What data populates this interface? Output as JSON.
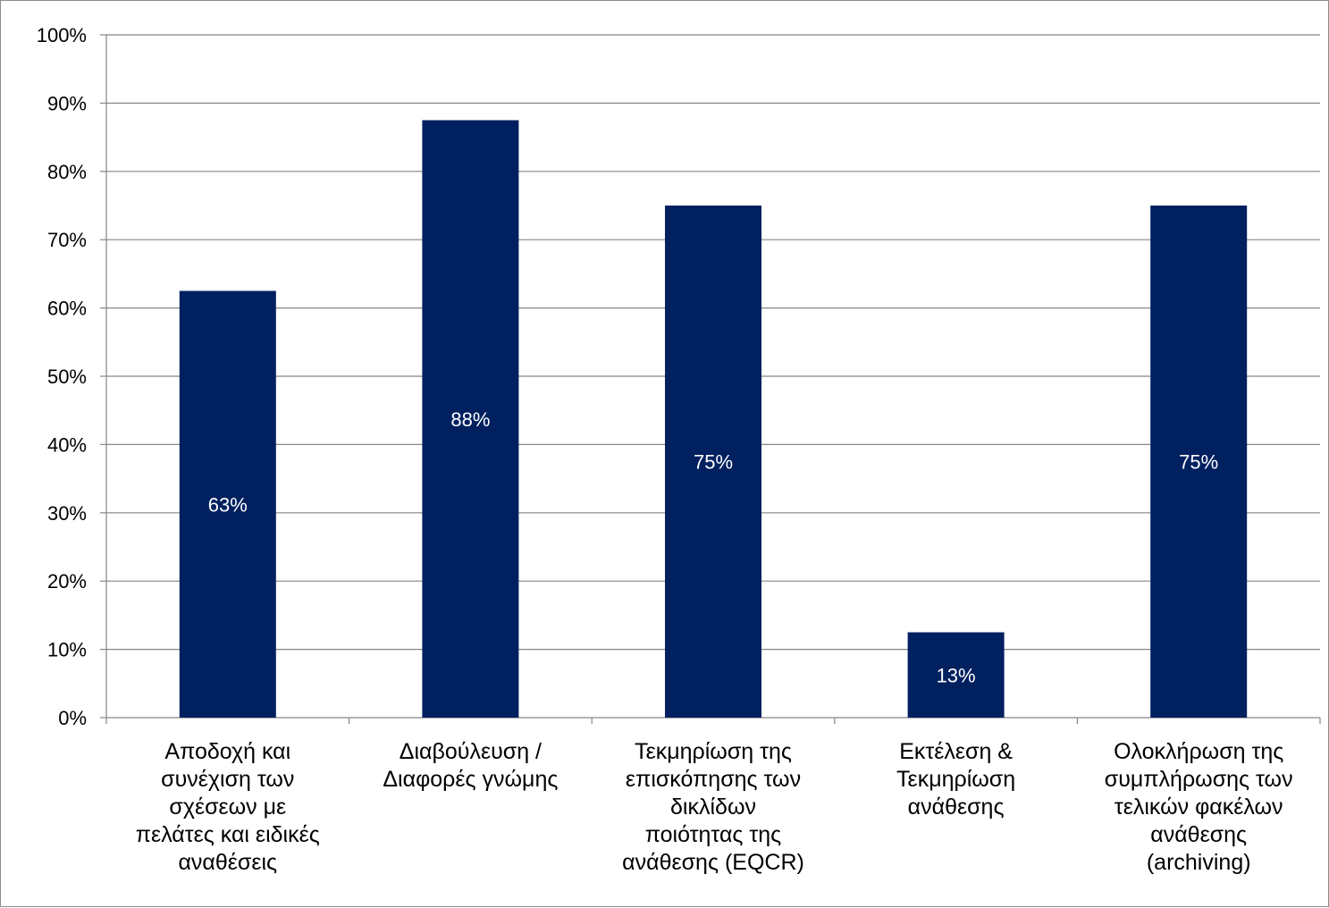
{
  "chart_data": {
    "type": "bar",
    "categories": [
      [
        "Αποδοχή και",
        "συνέχιση των",
        "σχέσεων με",
        "πελάτες και ειδικές",
        "αναθέσεις"
      ],
      [
        "Διαβούλευση /",
        "Διαφορές γνώμης"
      ],
      [
        "Τεκμηρίωση της",
        "επισκόπησης των",
        "δικλίδων",
        "ποιότητας της",
        "ανάθεσης (EQCR)"
      ],
      [
        "Εκτέλεση &",
        "Τεκμηρίωση",
        "ανάθεσης"
      ],
      [
        "Ολοκλήρωση της",
        "συμπλήρωσης των",
        "τελικών φακέλων",
        "ανάθεσης",
        "(archiving)"
      ]
    ],
    "values": [
      62.5,
      87.5,
      75,
      12.5,
      75
    ],
    "data_labels": [
      "63%",
      "88%",
      "75%",
      "13%",
      "75%"
    ],
    "ylim": [
      0,
      100
    ],
    "yticks": [
      "0%",
      "10%",
      "20%",
      "30%",
      "40%",
      "50%",
      "60%",
      "70%",
      "80%",
      "90%",
      "100%"
    ],
    "grid": true,
    "legend": "none",
    "colors": {
      "bar": "#002060",
      "grid": "#868686",
      "axis": "#868686",
      "data_label": "#ffffff"
    }
  }
}
